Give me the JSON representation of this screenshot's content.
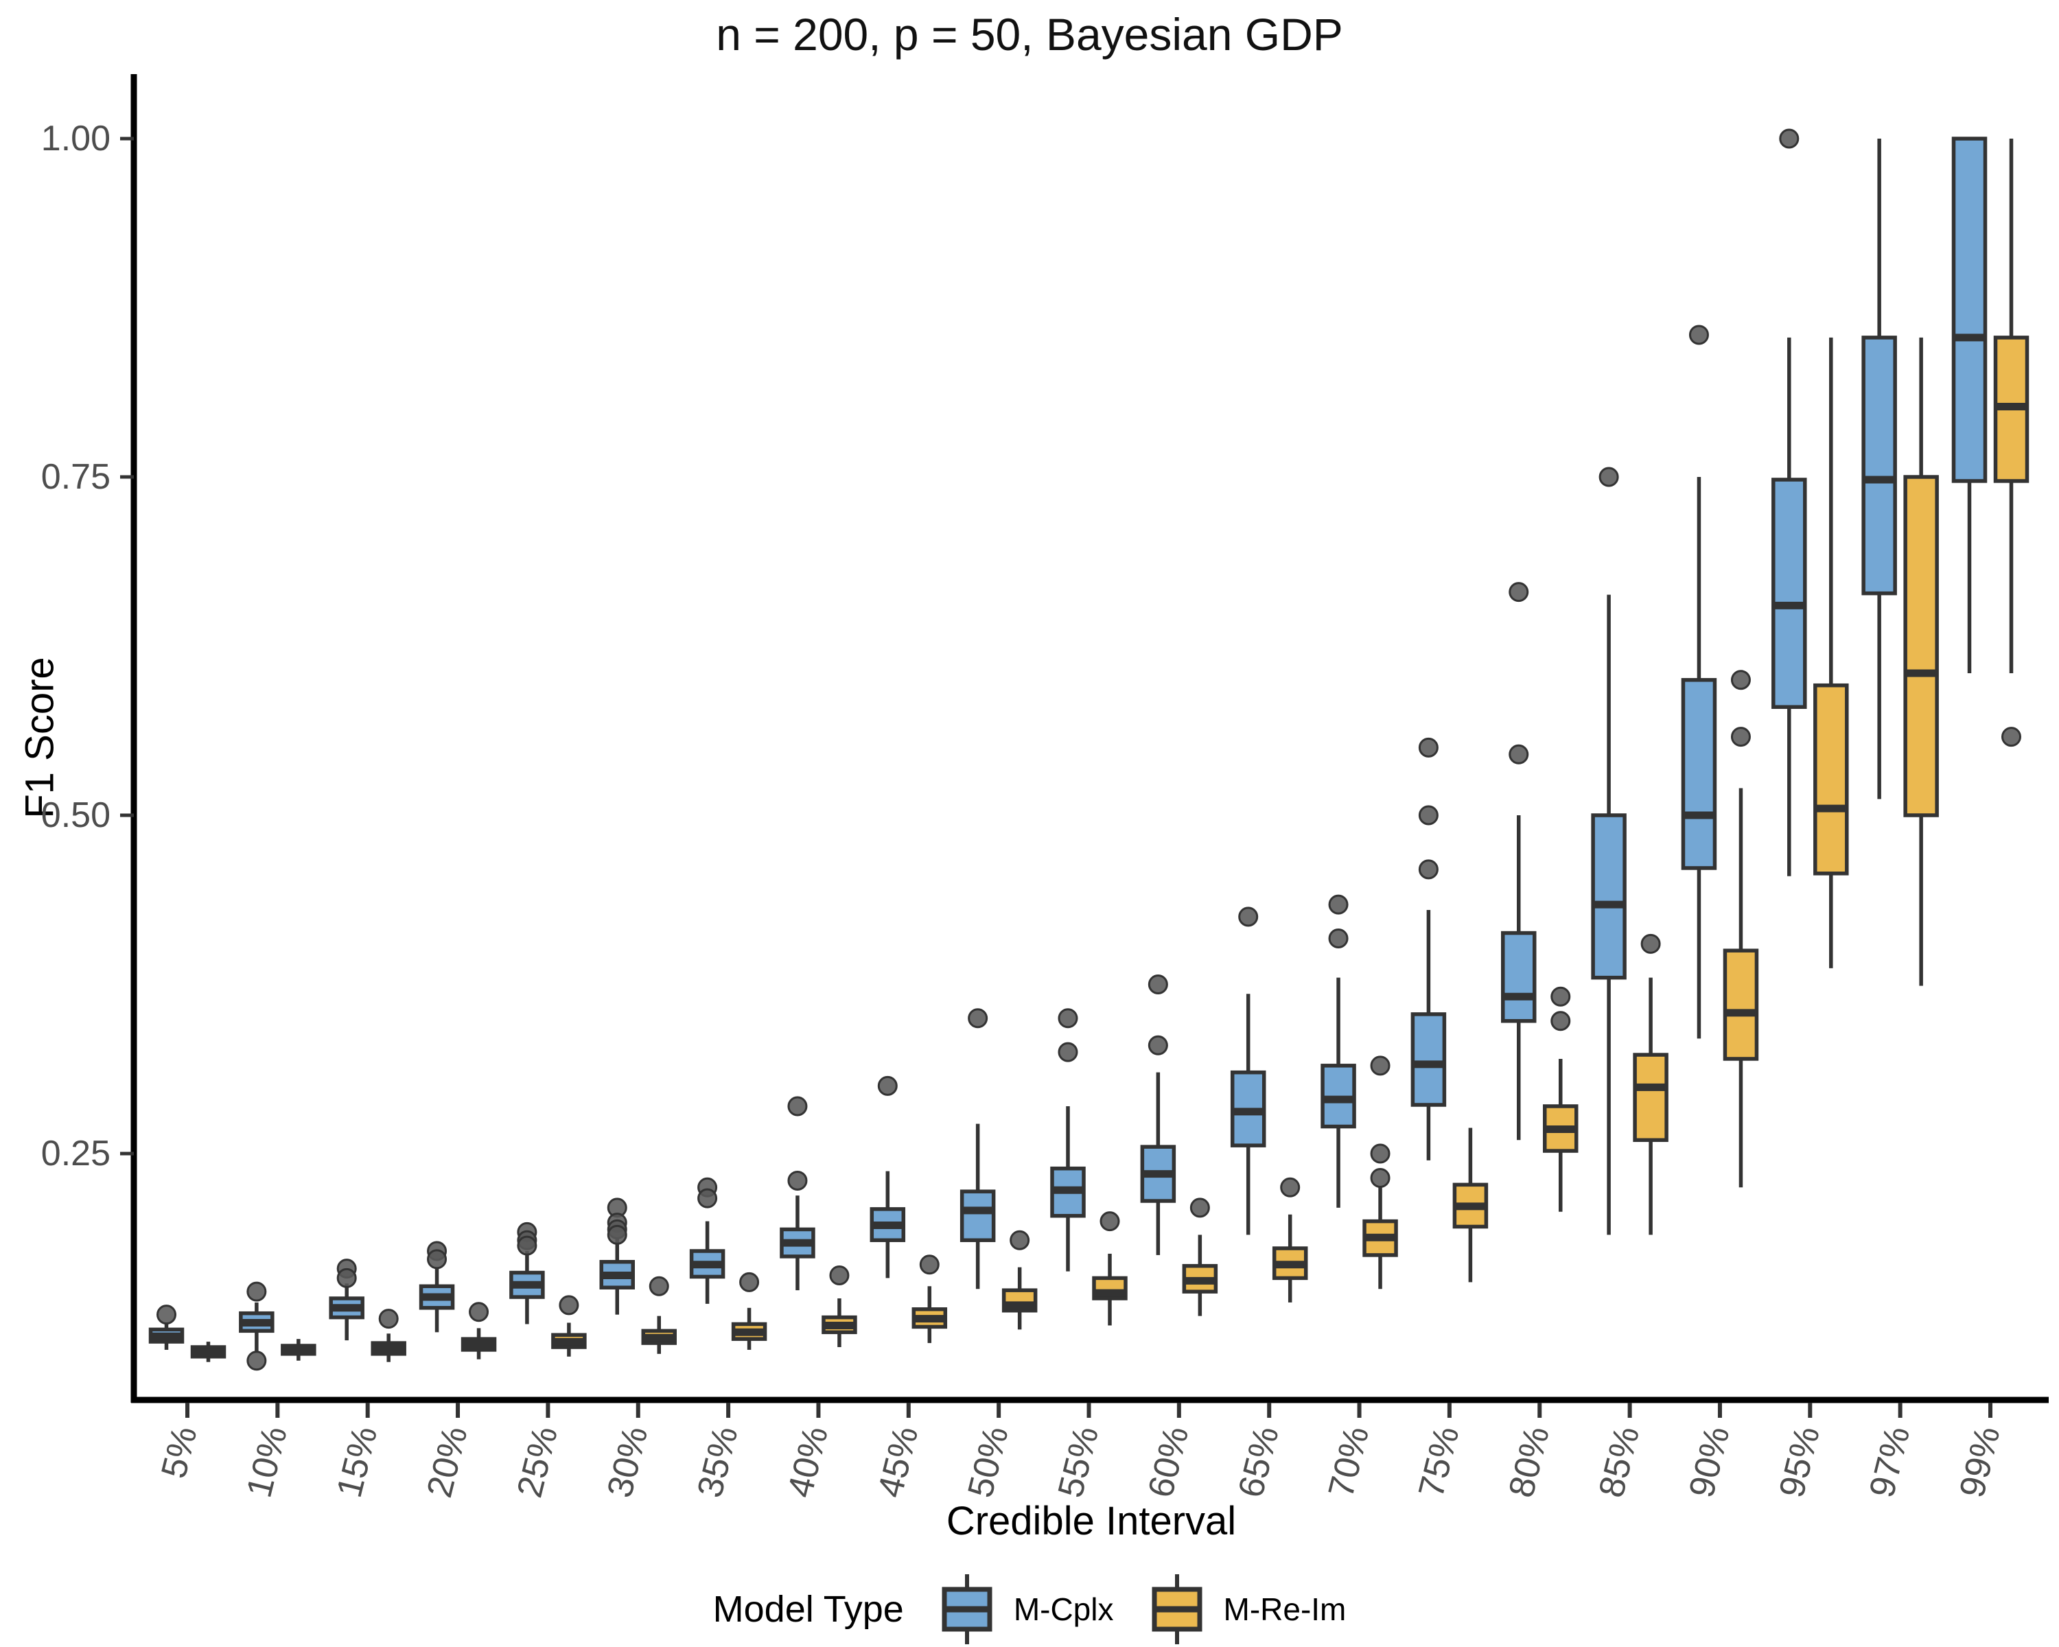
{
  "chart_data": {
    "type": "boxplot",
    "title": "n = 200, p = 50, Bayesian GDP",
    "xlabel": "Credible Interval",
    "ylabel": "F1 Score",
    "ylim": [
      0.068,
      1.048
    ],
    "grid": "off",
    "y_ticks": [
      {
        "value": 0.25,
        "label": "0.25"
      },
      {
        "value": 0.5,
        "label": "0.50"
      },
      {
        "value": 0.75,
        "label": "0.75"
      },
      {
        "value": 1.0,
        "label": "1.00"
      }
    ],
    "categories": [
      "5%",
      "10%",
      "15%",
      "20%",
      "25%",
      "30%",
      "35%",
      "40%",
      "45%",
      "50%",
      "55%",
      "60%",
      "65%",
      "70%",
      "75%",
      "80%",
      "85%",
      "90%",
      "95%",
      "97%",
      "99%"
    ],
    "legend": {
      "title": "Model Type",
      "position": "bottom"
    },
    "style": {
      "box_stroke": "#333333",
      "axis_color": "#000000",
      "tick_text_color": "#4d4d4d",
      "outlier_fill": "#595959",
      "outlier_stroke": "#333333"
    },
    "series": [
      {
        "name": "M-Cplx",
        "color": "#74A7D4",
        "boxes": [
          {
            "lo": 0.105,
            "q1": 0.111,
            "med": 0.115,
            "q3": 0.12,
            "hi": 0.125,
            "outliers": [
              0.131
            ]
          },
          {
            "lo": 0.104,
            "q1": 0.119,
            "med": 0.125,
            "q3": 0.132,
            "hi": 0.14,
            "outliers": [
              0.148,
              0.097
            ]
          },
          {
            "lo": 0.112,
            "q1": 0.129,
            "med": 0.136,
            "q3": 0.143,
            "hi": 0.154,
            "outliers": [
              0.165,
              0.158
            ]
          },
          {
            "lo": 0.118,
            "q1": 0.136,
            "med": 0.144,
            "q3": 0.152,
            "hi": 0.165,
            "outliers": [
              0.178,
              0.172
            ]
          },
          {
            "lo": 0.124,
            "q1": 0.144,
            "med": 0.153,
            "q3": 0.162,
            "hi": 0.178,
            "outliers": [
              0.192,
              0.186,
              0.182
            ]
          },
          {
            "lo": 0.131,
            "q1": 0.151,
            "med": 0.16,
            "q3": 0.17,
            "hi": 0.188,
            "outliers": [
              0.21,
              0.199,
              0.194,
              0.19
            ]
          },
          {
            "lo": 0.139,
            "q1": 0.159,
            "med": 0.168,
            "q3": 0.178,
            "hi": 0.2,
            "outliers": [
              0.225,
              0.217
            ]
          },
          {
            "lo": 0.149,
            "q1": 0.174,
            "med": 0.184,
            "q3": 0.194,
            "hi": 0.219,
            "outliers": [
              0.285,
              0.23
            ]
          },
          {
            "lo": 0.158,
            "q1": 0.186,
            "med": 0.197,
            "q3": 0.209,
            "hi": 0.237,
            "outliers": [
              0.3
            ]
          },
          {
            "lo": 0.15,
            "q1": 0.186,
            "med": 0.208,
            "q3": 0.222,
            "hi": 0.272,
            "outliers": [
              0.35
            ]
          },
          {
            "lo": 0.163,
            "q1": 0.204,
            "med": 0.223,
            "q3": 0.239,
            "hi": 0.285,
            "outliers": [
              0.35,
              0.325
            ]
          },
          {
            "lo": 0.175,
            "q1": 0.215,
            "med": 0.235,
            "q3": 0.255,
            "hi": 0.31,
            "outliers": [
              0.375,
              0.33
            ]
          },
          {
            "lo": 0.19,
            "q1": 0.256,
            "med": 0.281,
            "q3": 0.31,
            "hi": 0.368,
            "outliers": [
              0.425
            ]
          },
          {
            "lo": 0.21,
            "q1": 0.27,
            "med": 0.29,
            "q3": 0.315,
            "hi": 0.38,
            "outliers": [
              0.434,
              0.409
            ]
          },
          {
            "lo": 0.245,
            "q1": 0.286,
            "med": 0.316,
            "q3": 0.353,
            "hi": 0.43,
            "outliers": [
              0.55,
              0.5,
              0.46
            ]
          },
          {
            "lo": 0.26,
            "q1": 0.348,
            "med": 0.366,
            "q3": 0.413,
            "hi": 0.5,
            "outliers": [
              0.665,
              0.545
            ]
          },
          {
            "lo": 0.19,
            "q1": 0.38,
            "med": 0.434,
            "q3": 0.5,
            "hi": 0.663,
            "outliers": [
              0.75
            ]
          },
          {
            "lo": 0.335,
            "q1": 0.461,
            "med": 0.5,
            "q3": 0.6,
            "hi": 0.75,
            "outliers": [
              0.855
            ]
          },
          {
            "lo": 0.455,
            "q1": 0.58,
            "med": 0.655,
            "q3": 0.748,
            "hi": 0.853,
            "outliers": [
              1.0
            ]
          },
          {
            "lo": 0.512,
            "q1": 0.664,
            "med": 0.748,
            "q3": 0.853,
            "hi": 1.0,
            "outliers": []
          },
          {
            "lo": 0.605,
            "q1": 0.747,
            "med": 0.853,
            "q3": 1.0,
            "hi": 1.0,
            "outliers": []
          }
        ]
      },
      {
        "name": "M-Re-Im",
        "color": "#EBB950",
        "boxes": [
          {
            "lo": 0.096,
            "q1": 0.1,
            "med": 0.103,
            "q3": 0.107,
            "hi": 0.111,
            "outliers": []
          },
          {
            "lo": 0.097,
            "q1": 0.102,
            "med": 0.105,
            "q3": 0.108,
            "hi": 0.113,
            "outliers": []
          },
          {
            "lo": 0.096,
            "q1": 0.102,
            "med": 0.106,
            "q3": 0.11,
            "hi": 0.117,
            "outliers": [
              0.128
            ]
          },
          {
            "lo": 0.098,
            "q1": 0.105,
            "med": 0.109,
            "q3": 0.113,
            "hi": 0.121,
            "outliers": [
              0.133
            ]
          },
          {
            "lo": 0.1,
            "q1": 0.107,
            "med": 0.111,
            "q3": 0.116,
            "hi": 0.125,
            "outliers": [
              0.138
            ]
          },
          {
            "lo": 0.102,
            "q1": 0.11,
            "med": 0.114,
            "q3": 0.119,
            "hi": 0.13,
            "outliers": [
              0.152
            ]
          },
          {
            "lo": 0.105,
            "q1": 0.113,
            "med": 0.118,
            "q3": 0.124,
            "hi": 0.136,
            "outliers": [
              0.155
            ]
          },
          {
            "lo": 0.107,
            "q1": 0.118,
            "med": 0.123,
            "q3": 0.129,
            "hi": 0.143,
            "outliers": [
              0.16
            ]
          },
          {
            "lo": 0.11,
            "q1": 0.122,
            "med": 0.128,
            "q3": 0.135,
            "hi": 0.152,
            "outliers": [
              0.168
            ]
          },
          {
            "lo": 0.12,
            "q1": 0.134,
            "med": 0.138,
            "q3": 0.149,
            "hi": 0.166,
            "outliers": [
              0.186
            ]
          },
          {
            "lo": 0.123,
            "q1": 0.143,
            "med": 0.147,
            "q3": 0.158,
            "hi": 0.176,
            "outliers": [
              0.2
            ]
          },
          {
            "lo": 0.13,
            "q1": 0.148,
            "med": 0.156,
            "q3": 0.167,
            "hi": 0.19,
            "outliers": [
              0.21
            ]
          },
          {
            "lo": 0.14,
            "q1": 0.158,
            "med": 0.168,
            "q3": 0.18,
            "hi": 0.205,
            "outliers": [
              0.225
            ]
          },
          {
            "lo": 0.15,
            "q1": 0.175,
            "med": 0.188,
            "q3": 0.2,
            "hi": 0.225,
            "outliers": [
              0.315,
              0.25,
              0.232
            ]
          },
          {
            "lo": 0.155,
            "q1": 0.196,
            "med": 0.211,
            "q3": 0.227,
            "hi": 0.269,
            "outliers": []
          },
          {
            "lo": 0.207,
            "q1": 0.252,
            "med": 0.268,
            "q3": 0.285,
            "hi": 0.32,
            "outliers": [
              0.366,
              0.348
            ]
          },
          {
            "lo": 0.19,
            "q1": 0.26,
            "med": 0.299,
            "q3": 0.323,
            "hi": 0.38,
            "outliers": [
              0.405
            ]
          },
          {
            "lo": 0.225,
            "q1": 0.32,
            "med": 0.354,
            "q3": 0.4,
            "hi": 0.52,
            "outliers": [
              0.6,
              0.558
            ]
          },
          {
            "lo": 0.387,
            "q1": 0.457,
            "med": 0.505,
            "q3": 0.596,
            "hi": 0.853,
            "outliers": []
          },
          {
            "lo": 0.374,
            "q1": 0.5,
            "med": 0.605,
            "q3": 0.75,
            "hi": 0.853,
            "outliers": []
          },
          {
            "lo": 0.605,
            "q1": 0.747,
            "med": 0.802,
            "q3": 0.853,
            "hi": 1.0,
            "outliers": [
              0.558
            ]
          }
        ]
      }
    ]
  }
}
